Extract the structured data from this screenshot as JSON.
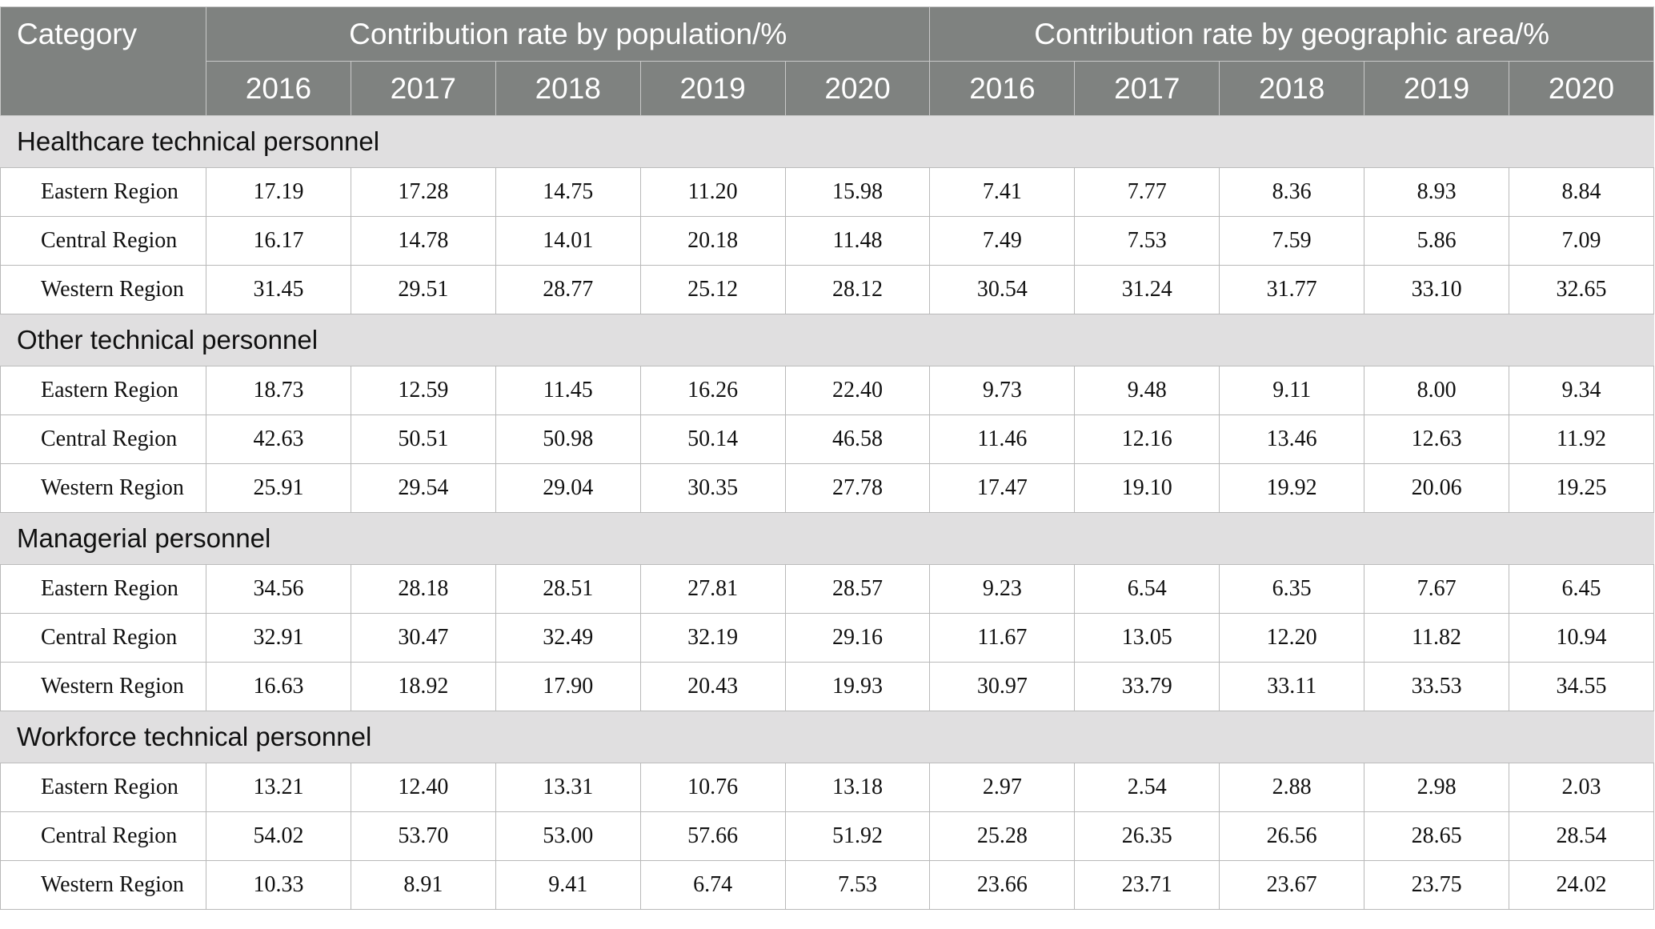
{
  "table": {
    "category_header": "Category",
    "group_headers": [
      "Contribution rate by population/%",
      "Contribution rate by geographic area/%"
    ],
    "years": [
      "2016",
      "2017",
      "2018",
      "2019",
      "2020"
    ],
    "sections": [
      {
        "title": "Healthcare technical personnel",
        "rows": [
          {
            "label": "Eastern Region",
            "values": [
              "17.19",
              "17.28",
              "14.75",
              "11.20",
              "15.98",
              "7.41",
              "7.77",
              "8.36",
              "8.93",
              "8.84"
            ]
          },
          {
            "label": "Central Region",
            "values": [
              "16.17",
              "14.78",
              "14.01",
              "20.18",
              "11.48",
              "7.49",
              "7.53",
              "7.59",
              "5.86",
              "7.09"
            ]
          },
          {
            "label": "Western Region",
            "values": [
              "31.45",
              "29.51",
              "28.77",
              "25.12",
              "28.12",
              "30.54",
              "31.24",
              "31.77",
              "33.10",
              "32.65"
            ]
          }
        ]
      },
      {
        "title": "Other technical personnel",
        "rows": [
          {
            "label": "Eastern Region",
            "values": [
              "18.73",
              "12.59",
              "11.45",
              "16.26",
              "22.40",
              "9.73",
              "9.48",
              "9.11",
              "8.00",
              "9.34"
            ]
          },
          {
            "label": "Central Region",
            "values": [
              "42.63",
              "50.51",
              "50.98",
              "50.14",
              "46.58",
              "11.46",
              "12.16",
              "13.46",
              "12.63",
              "11.92"
            ]
          },
          {
            "label": "Western Region",
            "values": [
              "25.91",
              "29.54",
              "29.04",
              "30.35",
              "27.78",
              "17.47",
              "19.10",
              "19.92",
              "20.06",
              "19.25"
            ]
          }
        ]
      },
      {
        "title": "Managerial personnel",
        "rows": [
          {
            "label": "Eastern Region",
            "values": [
              "34.56",
              "28.18",
              "28.51",
              "27.81",
              "28.57",
              "9.23",
              "6.54",
              "6.35",
              "7.67",
              "6.45"
            ]
          },
          {
            "label": "Central Region",
            "values": [
              "32.91",
              "30.47",
              "32.49",
              "32.19",
              "29.16",
              "11.67",
              "13.05",
              "12.20",
              "11.82",
              "10.94"
            ]
          },
          {
            "label": "Western Region",
            "values": [
              "16.63",
              "18.92",
              "17.90",
              "20.43",
              "19.93",
              "30.97",
              "33.79",
              "33.11",
              "33.53",
              "34.55"
            ]
          }
        ]
      },
      {
        "title": "Workforce technical personnel",
        "rows": [
          {
            "label": "Eastern Region",
            "values": [
              "13.21",
              "12.40",
              "13.31",
              "10.76",
              "13.18",
              "2.97",
              "2.54",
              "2.88",
              "2.98",
              "2.03"
            ]
          },
          {
            "label": "Central Region",
            "values": [
              "54.02",
              "53.70",
              "53.00",
              "57.66",
              "51.92",
              "25.28",
              "26.35",
              "26.56",
              "28.65",
              "28.54"
            ]
          },
          {
            "label": "Western Region",
            "values": [
              "10.33",
              "8.91",
              "9.41",
              "6.74",
              "7.53",
              "23.66",
              "23.71",
              "23.67",
              "23.75",
              "24.02"
            ]
          }
        ]
      }
    ]
  },
  "colors": {
    "header_bg": "#7f8280",
    "section_bg": "#e0dfe0"
  }
}
